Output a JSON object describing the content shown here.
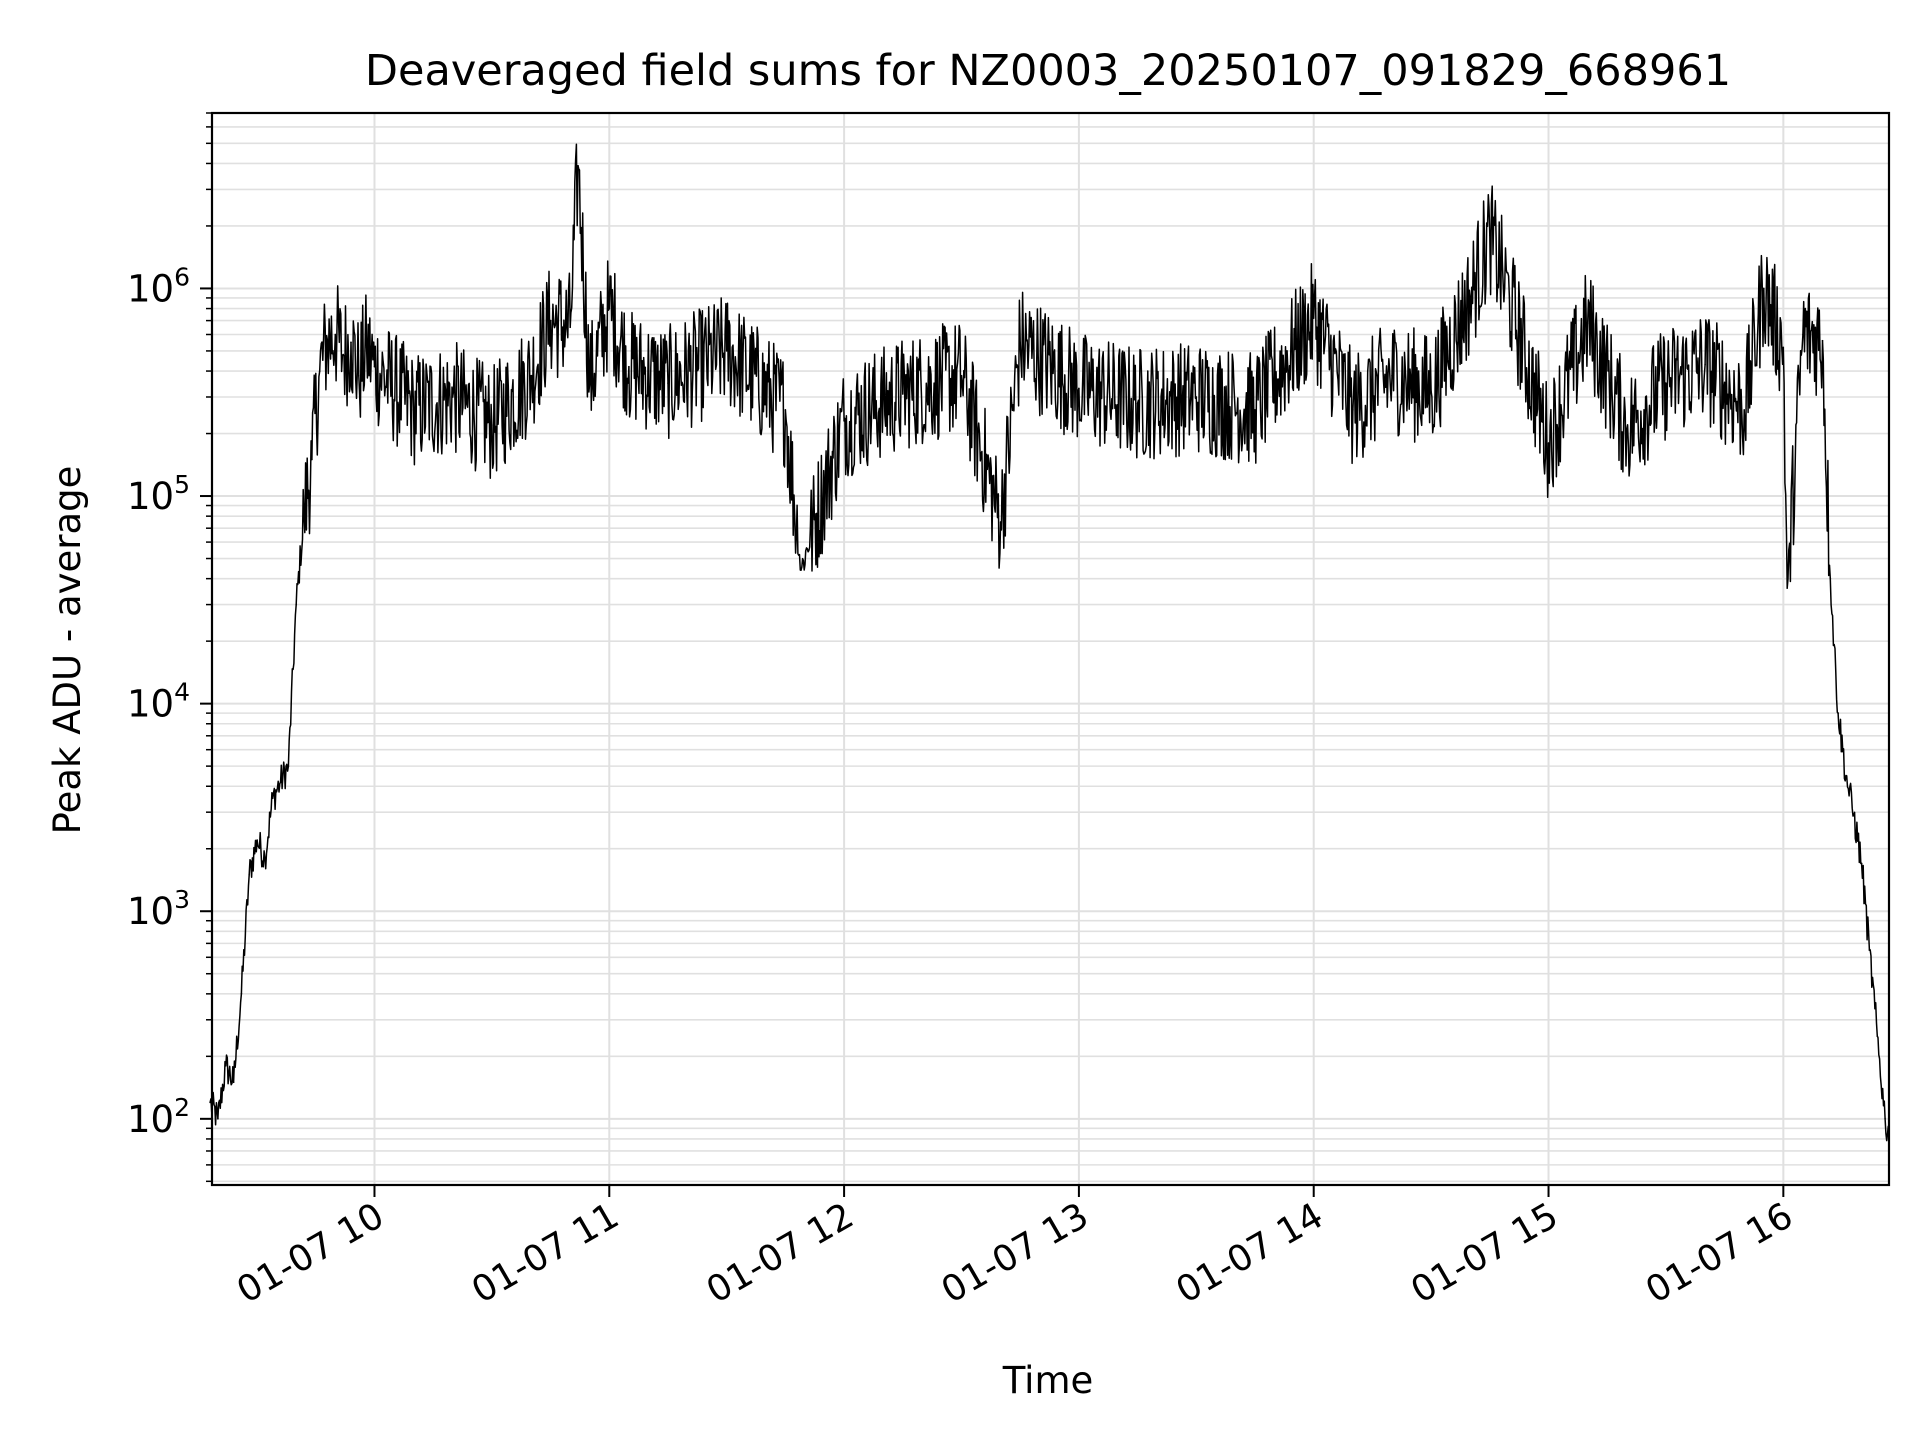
{
  "chart_data": {
    "type": "line",
    "title": "Deaveraged field sums for NZ0003_20250107_091829_668961",
    "xlabel": "Time",
    "ylabel": "Peak ADU - average",
    "yscale": "log",
    "ylim": [
      48,
      7000000
    ],
    "xlim": [
      "2025-01-07 09:18:29",
      "2025-01-07 16:27:00"
    ],
    "grid": true,
    "line_color": "#000000",
    "grid_color": "#e0e0e0",
    "x_ticks": [
      {
        "label": "01-07 10",
        "time": "2025-01-07 10:00"
      },
      {
        "label": "01-07 11",
        "time": "2025-01-07 11:00"
      },
      {
        "label": "01-07 12",
        "time": "2025-01-07 12:00"
      },
      {
        "label": "01-07 13",
        "time": "2025-01-07 13:00"
      },
      {
        "label": "01-07 14",
        "time": "2025-01-07 14:00"
      },
      {
        "label": "01-07 15",
        "time": "2025-01-07 15:00"
      },
      {
        "label": "01-07 16",
        "time": "2025-01-07 16:00"
      }
    ],
    "y_ticks": [
      {
        "base": "10",
        "exp": "2",
        "value": 100
      },
      {
        "base": "10",
        "exp": "3",
        "value": 1000
      },
      {
        "base": "10",
        "exp": "4",
        "value": 10000
      },
      {
        "base": "10",
        "exp": "5",
        "value": 100000
      },
      {
        "base": "10",
        "exp": "6",
        "value": 1000000
      }
    ],
    "series": [
      {
        "x": [
          "09:18",
          "09:20",
          "09:22",
          "09:24",
          "09:26",
          "09:28",
          "09:30",
          "09:32",
          "09:34",
          "09:36",
          "09:38",
          "09:40",
          "09:42",
          "09:44",
          "09:46",
          "09:48",
          "09:50",
          "09:52",
          "09:54",
          "09:56",
          "09:58",
          "10:00",
          "10:10",
          "10:20",
          "10:30",
          "10:40",
          "10:45",
          "10:50",
          "10:52",
          "10:55",
          "11:00",
          "11:05",
          "11:15",
          "11:30",
          "11:45",
          "11:49",
          "12:00",
          "12:15",
          "12:30",
          "12:40",
          "12:45",
          "13:00",
          "13:15",
          "13:30",
          "13:45",
          "14:00",
          "14:10",
          "14:20",
          "14:30",
          "14:40",
          "14:45",
          "14:50",
          "15:00",
          "15:10",
          "15:20",
          "15:30",
          "15:40",
          "15:50",
          "15:55",
          "16:00",
          "16:01",
          "16:05",
          "16:10",
          "16:12",
          "16:14",
          "16:16",
          "16:18",
          "16:20",
          "16:22",
          "16:24",
          "16:26",
          "16:27"
        ],
        "y": [
          120,
          100,
          180,
          150,
          400,
          1500,
          2200,
          1800,
          3500,
          4200,
          5000,
          30000,
          80000,
          150000,
          400000,
          560000,
          600000,
          480000,
          550000,
          380000,
          520000,
          420000,
          260000,
          300000,
          220000,
          380000,
          700000,
          650000,
          3900000,
          350000,
          800000,
          420000,
          350000,
          500000,
          260000,
          44000,
          230000,
          310000,
          380000,
          75000,
          550000,
          330000,
          280000,
          300000,
          260000,
          720000,
          260000,
          380000,
          320000,
          900000,
          1800000,
          900000,
          180000,
          680000,
          210000,
          350000,
          430000,
          260000,
          1000000,
          520000,
          36000,
          600000,
          560000,
          40000,
          9000,
          4500,
          2900,
          1700,
          650,
          250,
          100,
          80
        ]
      }
    ]
  }
}
